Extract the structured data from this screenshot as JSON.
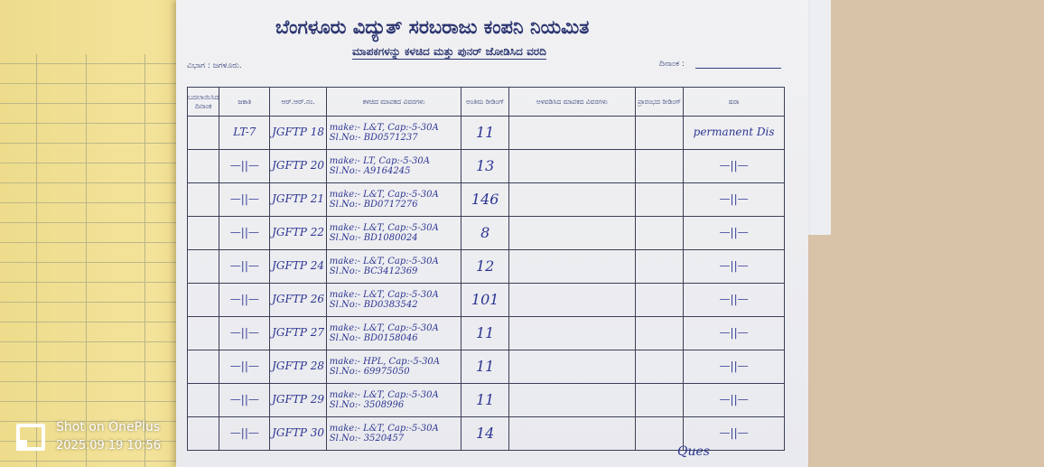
{
  "form": {
    "title": "ಬೆಂಗಳೂರು ವಿದ್ಯುತ್ ಸರಬರಾಜು ಕಂಪನಿ ನಿಯಮಿತ",
    "subtitle": "ಮಾಪಕಗಳನ್ನು ಕಳಚಿದ ಮತ್ತು ಪುನರ್ ಜೋಡಿಸಿದ ವರದಿ",
    "division": "ವಿಭಾಗ : ಜಗಳೂರು.",
    "date_label": "ದಿನಾಂಕ :",
    "columns": [
      "ಬದಲಾಯಿಸಿದ ದಿನಾಂಕ",
      "ಜಕಾತಿ",
      "ಆರ್.ಆರ್.ನಂ.",
      "ಕಳಚಿದ ಮಾಪಕದ ವಿವರಗಳು",
      "ಅಂತಿಮ ರೀಡಿಂಗ್",
      "ಅಳವಡಿಸಿದ ಮಾಪಕದ ವಿವರಗಳು",
      "ಪ್ರಾರಂಭದ ರೀಡಿಂಗ್",
      "ಷರಾ"
    ],
    "rows": [
      {
        "tariff": "LT-7",
        "rr": "JGFTP 18",
        "make": "make:- L&T, Cap:-5-30A",
        "sl": "Sl.No:- BD0571237",
        "final": "11",
        "remarks": "permanent Dis"
      },
      {
        "tariff": "—||—",
        "rr": "JGFTP 20",
        "make": "make:- LT, Cap:-5-30A",
        "sl": "Sl.No:- A9164245",
        "final": "13",
        "remarks": "—||—"
      },
      {
        "tariff": "—||—",
        "rr": "JGFTP 21",
        "make": "make:- L&T, Cap:-5-30A",
        "sl": "Sl.No:- BD0717276",
        "final": "146",
        "remarks": "—||—"
      },
      {
        "tariff": "—||—",
        "rr": "JGFTP 22",
        "make": "make:- L&T, Cap:-5-30A",
        "sl": "Sl.No:- BD1080024",
        "final": "8",
        "remarks": "—||—"
      },
      {
        "tariff": "—||—",
        "rr": "JGFTP 24",
        "make": "make:- L&T, Cap:-5-30A",
        "sl": "Sl.No:- BC3412369",
        "final": "12",
        "remarks": "—||—"
      },
      {
        "tariff": "—||—",
        "rr": "JGFTP 26",
        "make": "make:- L&T, Cap:-5-30A",
        "sl": "Sl.No:- BD0383542",
        "final": "101",
        "remarks": "—||—"
      },
      {
        "tariff": "—||—",
        "rr": "JGFTP 27",
        "make": "make:- L&T, Cap:-5-30A",
        "sl": "Sl.No:- BD0158046",
        "final": "11",
        "remarks": "—||—"
      },
      {
        "tariff": "—||—",
        "rr": "JGFTP 28",
        "make": "make:- HPL, Cap:-5-30A",
        "sl": "Sl.No:- 69975050",
        "final": "11",
        "remarks": "—||—"
      },
      {
        "tariff": "—||—",
        "rr": "JGFTP 29",
        "make": "make:- L&T, Cap:-5-30A",
        "sl": "Sl.No:- 3508996",
        "final": "11",
        "remarks": "—||—"
      },
      {
        "tariff": "—||—",
        "rr": "JGFTP 30",
        "make": "make:- L&T, Cap:-5-30A",
        "sl": "Sl.No:- 3520457",
        "final": "14",
        "remarks": "—||—"
      }
    ],
    "signature": "Ques"
  },
  "watermark": {
    "line1": "Shot on OnePlus",
    "line2": "2025.09.19 10:56"
  }
}
